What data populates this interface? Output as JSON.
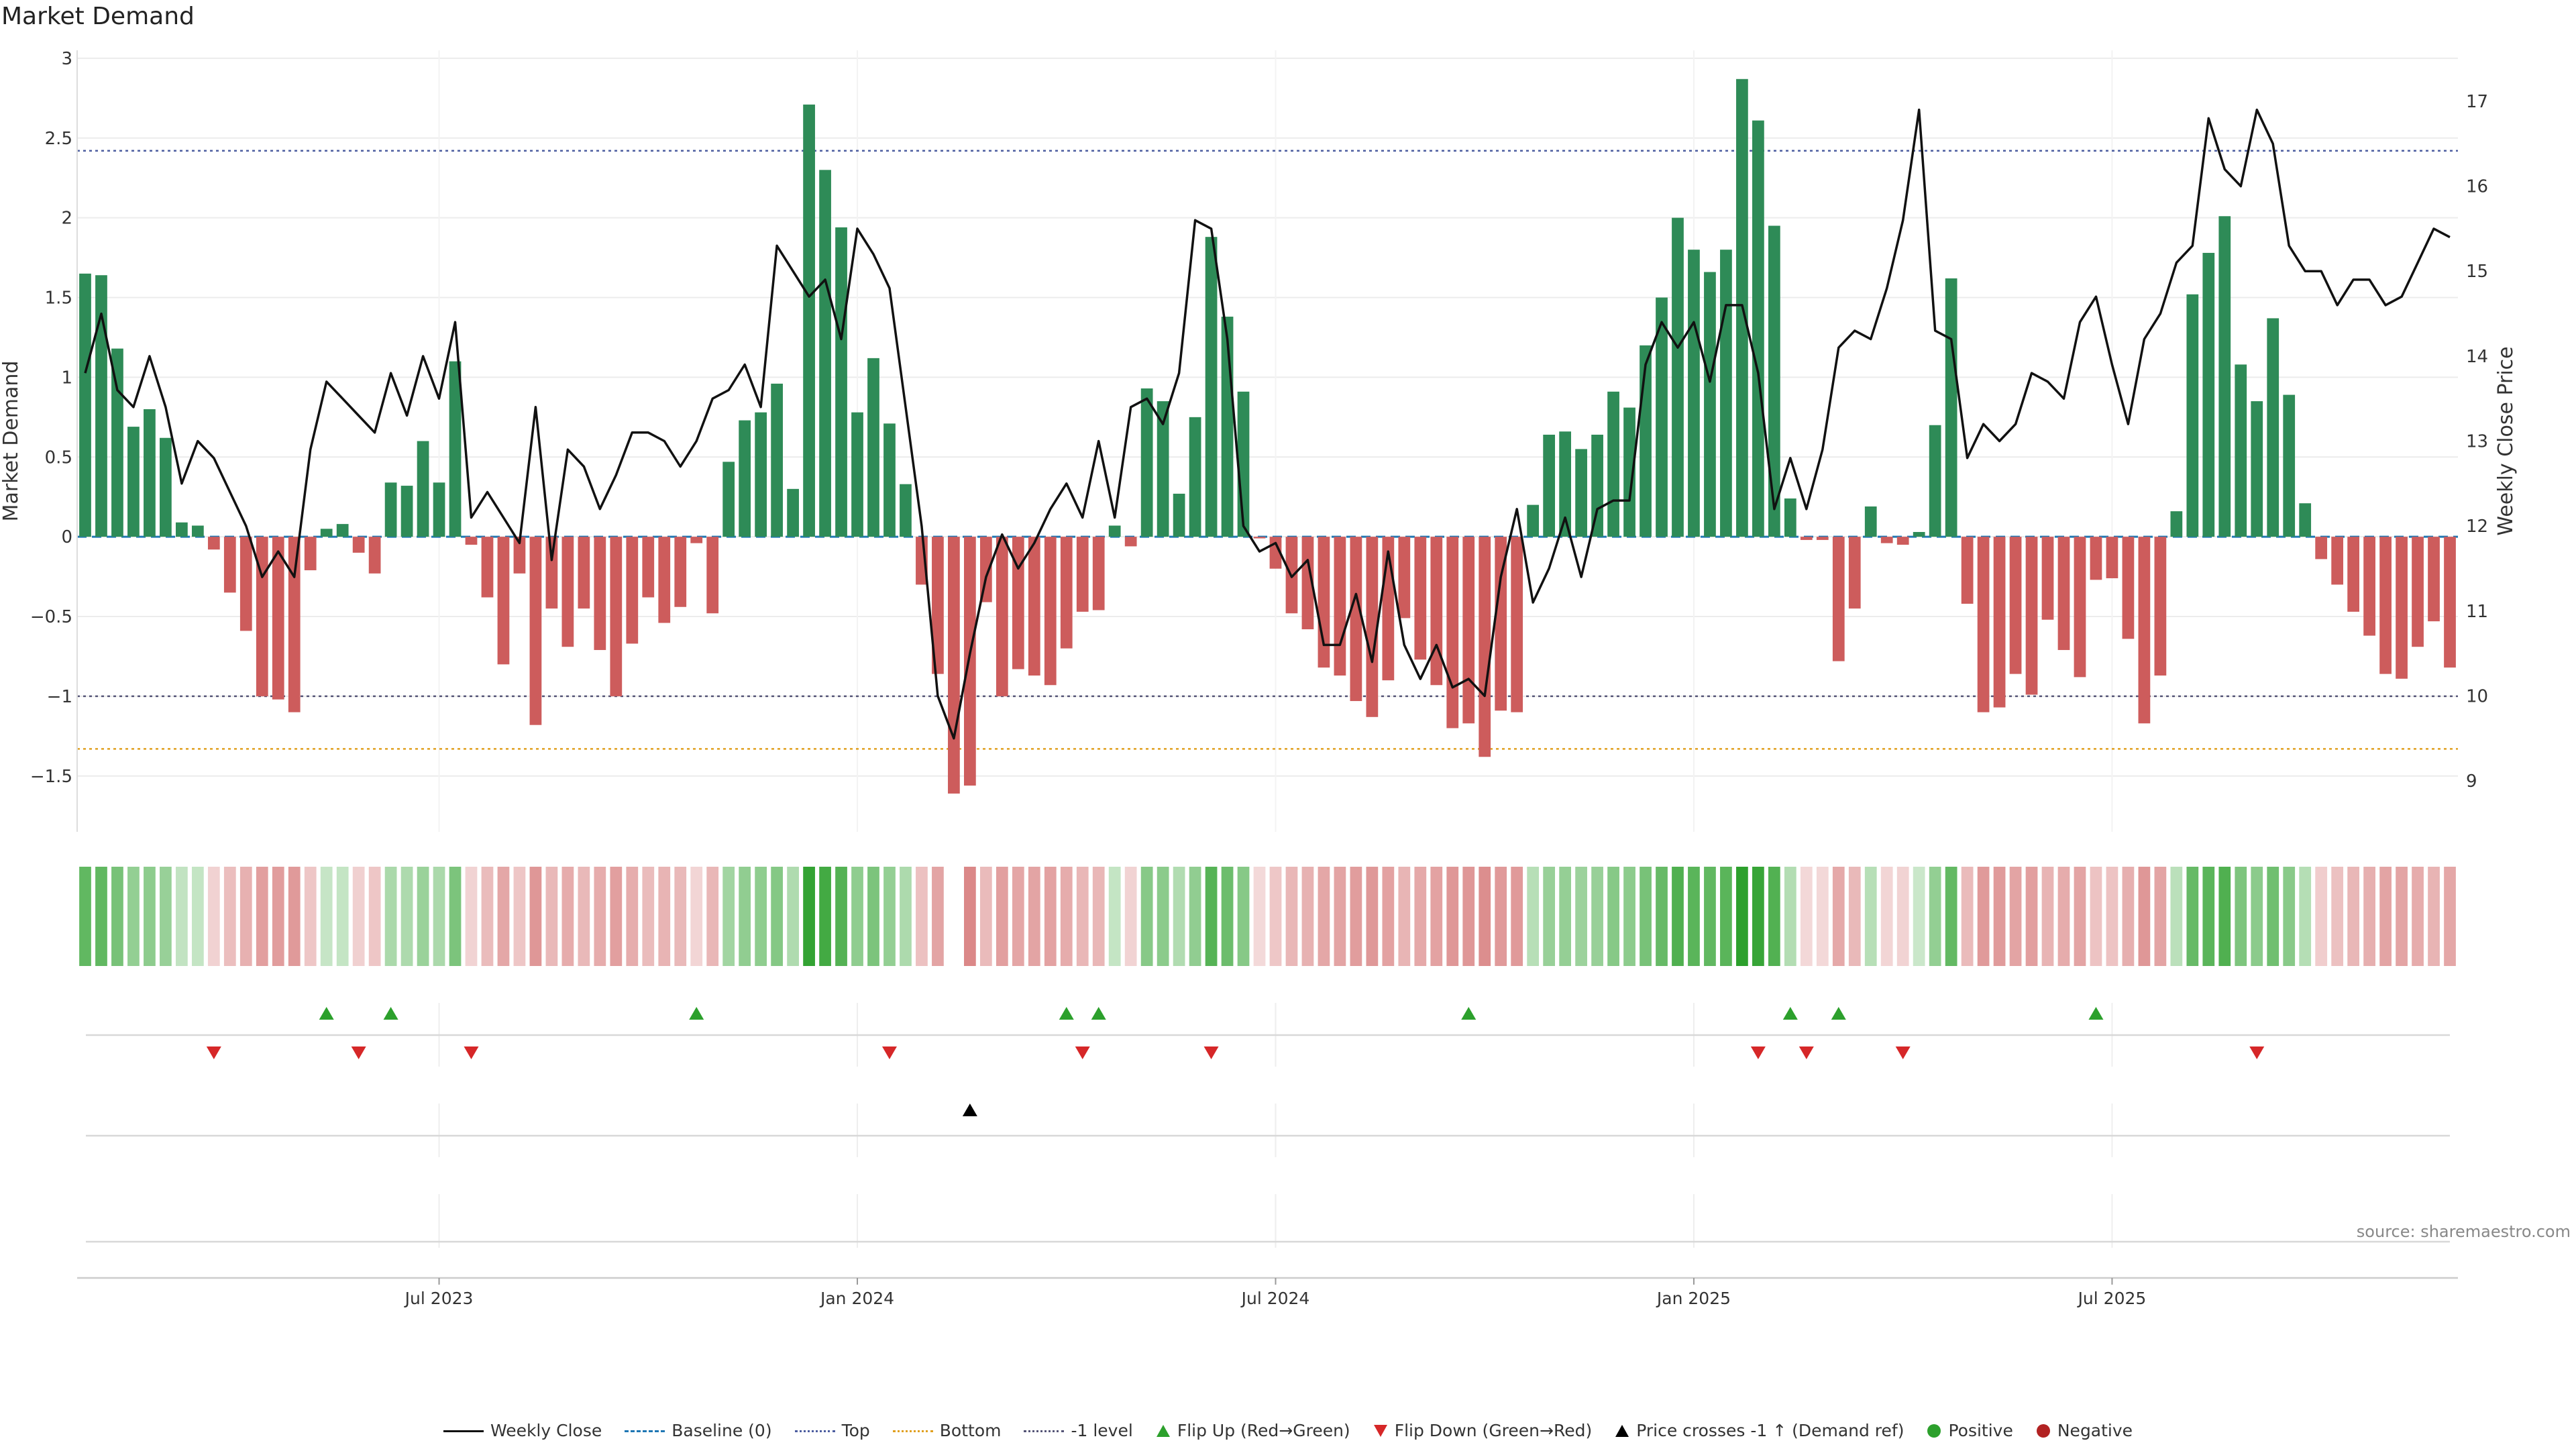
{
  "chart_data": {
    "type": "bar",
    "title": "Market Demand",
    "ylabel": "Market Demand",
    "y2label": "Weekly Close Price",
    "ylim": [
      -1.85,
      3.05
    ],
    "y2lim": [
      8.4,
      17.6
    ],
    "yticks": [
      3,
      2.5,
      2,
      1.5,
      1,
      0.5,
      0,
      -0.5,
      -1,
      -1.5
    ],
    "ytick_labels": [
      "3",
      "2.5",
      "2",
      "1.5",
      "1",
      "0.5",
      "0",
      "−0.5",
      "−1",
      "−1.5"
    ],
    "y2ticks": [
      17,
      16,
      15,
      14,
      13,
      12,
      11,
      10,
      9
    ],
    "y2tick_labels": [
      "17",
      "16",
      "15",
      "14",
      "13",
      "12",
      "11",
      "10",
      "9"
    ],
    "xtick_labels": [
      "Jul 2023",
      "Jan 2024",
      "Jul 2024",
      "Jan 2025",
      "Jul 2025"
    ],
    "xtick_weeks": [
      22,
      48,
      74,
      100,
      126
    ],
    "reference_lines": {
      "top": 2.42,
      "bottom": -1.33,
      "minus_one": -1.0,
      "baseline": 0
    },
    "demand": [
      1.65,
      1.64,
      1.18,
      0.69,
      0.8,
      0.62,
      0.09,
      0.07,
      -0.08,
      -0.35,
      -0.59,
      -1.0,
      -1.02,
      -1.1,
      -0.21,
      0.05,
      0.08,
      -0.1,
      -0.23,
      0.34,
      0.32,
      0.6,
      0.34,
      1.1,
      -0.05,
      -0.38,
      -0.8,
      -0.23,
      -1.18,
      -0.45,
      -0.69,
      -0.45,
      -0.71,
      -1.0,
      -0.67,
      -0.38,
      -0.54,
      -0.44,
      -0.04,
      -0.48,
      0.47,
      0.73,
      0.78,
      0.96,
      0.3,
      2.71,
      2.3,
      1.94,
      0.78,
      1.12,
      0.71,
      0.33,
      -0.3,
      -0.86,
      -1.61,
      -1.56,
      -0.41,
      -1.0,
      -0.83,
      -0.87,
      -0.93,
      -0.7,
      -0.47,
      -0.46,
      0.07,
      -0.06,
      0.93,
      0.85,
      0.27,
      0.75,
      1.88,
      1.38,
      0.91,
      -0.01,
      -0.2,
      -0.48,
      -0.58,
      -0.82,
      -0.87,
      -1.03,
      -1.13,
      -0.9,
      -0.51,
      -0.77,
      -0.93,
      -1.2,
      -1.17,
      -1.38,
      -1.09,
      -1.1,
      0.2,
      0.64,
      0.66,
      0.55,
      0.64,
      0.91,
      0.81,
      1.2,
      1.5,
      2.0,
      1.8,
      1.66,
      1.8,
      2.87,
      2.61,
      1.95,
      0.24,
      -0.02,
      -0.02,
      -0.78,
      -0.45,
      0.19,
      -0.04,
      -0.05,
      0.03,
      0.7,
      1.62,
      -0.42,
      -1.1,
      -1.07,
      -0.86,
      -0.99,
      -0.52,
      -0.71,
      -0.88,
      -0.27,
      -0.26,
      -0.64,
      -1.17,
      -0.87,
      0.16,
      1.52,
      1.78,
      2.01,
      1.08,
      0.85,
      1.37,
      0.89,
      0.21,
      -0.14,
      -0.3,
      -0.47,
      -0.62,
      -0.86,
      -0.89,
      -0.69,
      -0.53,
      -0.82
    ],
    "weekly_close": [
      13.8,
      14.5,
      13.6,
      13.4,
      14.0,
      13.4,
      12.5,
      13.0,
      12.8,
      12.4,
      12.0,
      11.4,
      11.7,
      11.4,
      12.9,
      13.7,
      13.5,
      13.3,
      13.1,
      13.8,
      13.3,
      14.0,
      13.5,
      14.4,
      12.1,
      12.4,
      12.1,
      11.8,
      13.4,
      11.6,
      12.9,
      12.7,
      12.2,
      12.6,
      13.1,
      13.1,
      13.0,
      12.7,
      13.0,
      13.5,
      13.6,
      13.9,
      13.4,
      15.3,
      15.0,
      14.7,
      14.9,
      14.2,
      15.5,
      15.2,
      14.8,
      13.4,
      12.0,
      10.0,
      9.5,
      10.5,
      11.4,
      11.9,
      11.5,
      11.8,
      12.2,
      12.5,
      12.1,
      13.0,
      12.1,
      13.4,
      13.5,
      13.2,
      13.8,
      15.6,
      15.5,
      14.2,
      12.0,
      11.7,
      11.8,
      11.4,
      11.6,
      10.6,
      10.6,
      11.2,
      10.4,
      11.7,
      10.6,
      10.2,
      10.6,
      10.1,
      10.2,
      10.0,
      11.4,
      12.2,
      11.1,
      11.5,
      12.1,
      11.4,
      12.2,
      12.3,
      12.3,
      13.9,
      14.4,
      14.1,
      14.4,
      13.7,
      14.6,
      14.6,
      13.8,
      12.2,
      12.8,
      12.2,
      12.9,
      14.1,
      14.3,
      14.2,
      14.8,
      15.6,
      16.9,
      14.3,
      14.2,
      12.8,
      13.2,
      13.0,
      13.2,
      13.8,
      13.7,
      13.5,
      14.4,
      14.7,
      13.9,
      13.2,
      14.2,
      14.5,
      15.1,
      15.3,
      16.8,
      16.2,
      16.0,
      16.9,
      16.5,
      15.3,
      15.0,
      15.0,
      14.6,
      14.9,
      14.9,
      14.6,
      14.7,
      15.1,
      15.5,
      15.4
    ],
    "heatmap_gap_after_week": 54,
    "flip_up_weeks": [
      15,
      19,
      38,
      61,
      63,
      86,
      106,
      109,
      125
    ],
    "flip_down_weeks": [
      8,
      17,
      24,
      50,
      62,
      70,
      104,
      107,
      113,
      135
    ],
    "price_cross_weeks": [
      55
    ],
    "legend": [
      "Weekly Close",
      "Baseline (0)",
      "Top",
      "Bottom",
      "-1 level",
      "Flip Up (Red→Green)",
      "Flip Down (Green→Red)",
      "Price crosses -1 ↑ (Demand ref)",
      "Positive",
      "Negative"
    ]
  },
  "colors": {
    "positive": "#2e8b57",
    "negative": "#cd5c5c",
    "close_line": "#111111",
    "baseline": "#1f77b4",
    "top": "#4d5ea0",
    "bottom": "#e0a020",
    "minus_one": "#555577",
    "flip_up": "#2ca02c",
    "flip_down": "#d62728",
    "cross": "#000000",
    "legend_positive": "#2ca02c",
    "legend_negative": "#b22222"
  },
  "source": "source: sharemaestro.com"
}
